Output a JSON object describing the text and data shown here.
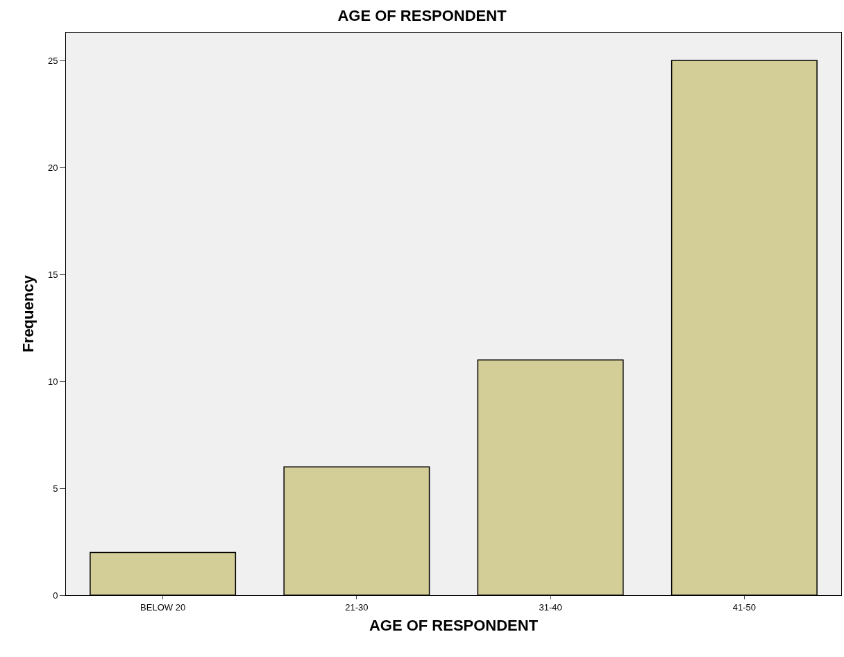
{
  "chart_data": {
    "type": "bar",
    "title": "AGE OF RESPONDENT",
    "xlabel": "AGE OF RESPONDENT",
    "ylabel": "Frequency",
    "categories": [
      "BELOW 20",
      "21-30",
      "31-40",
      "41-50"
    ],
    "values": [
      2,
      6,
      11,
      25
    ],
    "color": "#d3ce97",
    "ylim": [
      0,
      26.3
    ],
    "yticks": [
      0,
      5,
      10,
      15,
      20,
      25
    ],
    "grid": false
  }
}
